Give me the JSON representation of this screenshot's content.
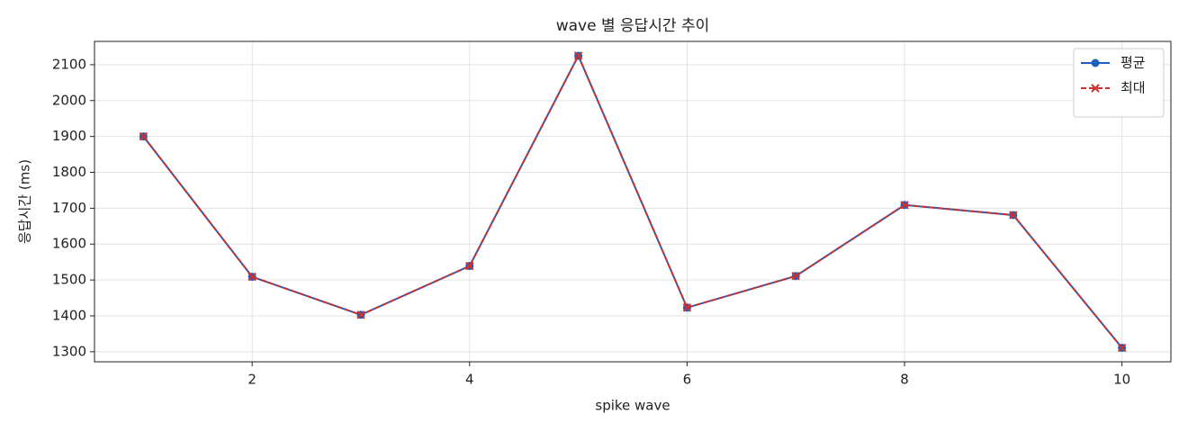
{
  "chart_data": {
    "type": "line",
    "title": "wave 별 응답시간 추이",
    "x_label": "spike wave",
    "y_label": "응답시간 (ms)",
    "x": [
      1,
      2,
      3,
      4,
      5,
      6,
      7,
      8,
      9,
      10
    ],
    "series": [
      {
        "name": "평균",
        "color": "#1f5fbf",
        "marker": "o",
        "linestyle": "solid",
        "values": [
          1900,
          1509,
          1403,
          1539,
          2125,
          1423,
          1511,
          1709,
          1681,
          1311
        ]
      },
      {
        "name": "최대",
        "color": "#c8322f",
        "marker": "x",
        "linestyle": "dashed",
        "values": [
          1900,
          1509,
          1403,
          1539,
          2125,
          1423,
          1511,
          1709,
          1681,
          1311
        ]
      }
    ],
    "xlim": [
      0.55,
      10.45
    ],
    "xticks": [
      2,
      4,
      6,
      8,
      10
    ],
    "ylim": [
      1272,
      2165
    ],
    "yticks": [
      1300,
      1400,
      1500,
      1600,
      1700,
      1800,
      1900,
      2000,
      2100
    ],
    "grid": true,
    "legend": "upper right"
  }
}
